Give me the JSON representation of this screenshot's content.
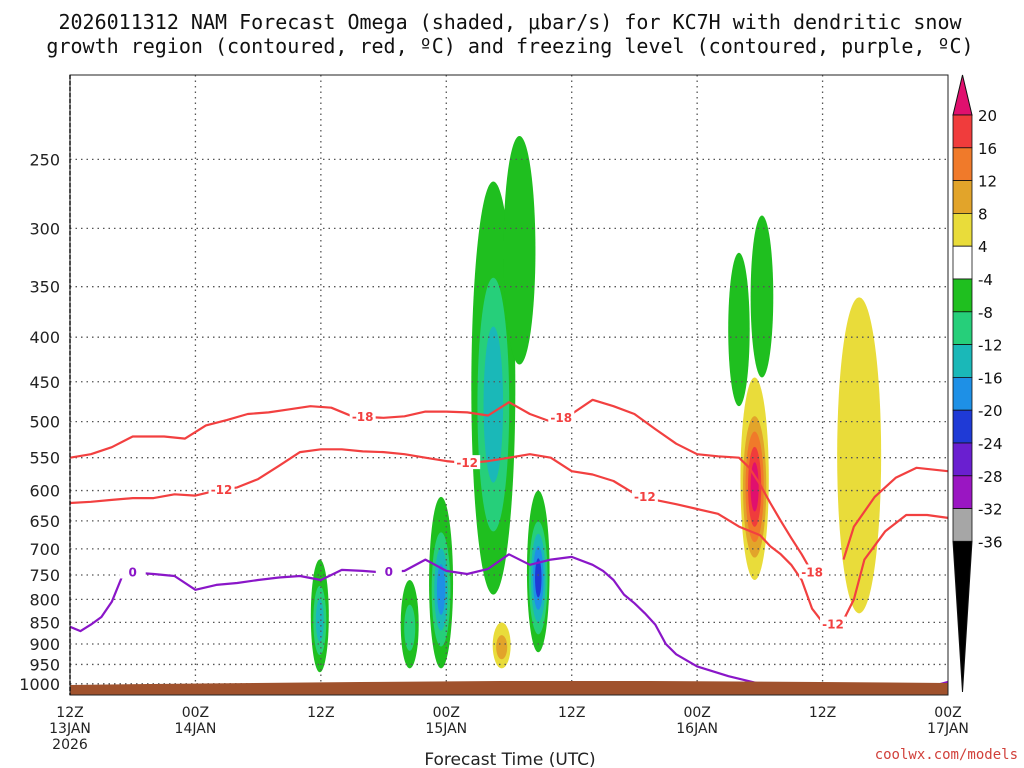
{
  "chart_data": {
    "type": "heatmap",
    "title_lines": [
      "2026011312 NAM Forecast Omega (shaded, μbar/s) for KC7H with dendritic snow",
      "growth region (contoured, red, ºC) and freezing level (contoured, purple, ºC)"
    ],
    "xlabel": "Forecast Time (UTC)",
    "ylabel": "",
    "x_unit": "forecast hour",
    "xlim": [
      0,
      84
    ],
    "ylim": [
      1030,
      200
    ],
    "y_ticks": [
      250,
      300,
      350,
      400,
      450,
      500,
      550,
      600,
      650,
      700,
      750,
      800,
      850,
      900,
      950,
      1000
    ],
    "x_ticks": [
      {
        "hour": 0,
        "line1": "12Z",
        "line2": "13JAN",
        "line3": "2026"
      },
      {
        "hour": 12,
        "line1": "00Z",
        "line2": "14JAN",
        "line3": ""
      },
      {
        "hour": 24,
        "line1": "12Z",
        "line2": "",
        "line3": ""
      },
      {
        "hour": 36,
        "line1": "00Z",
        "line2": "15JAN",
        "line3": ""
      },
      {
        "hour": 48,
        "line1": "12Z",
        "line2": "",
        "line3": ""
      },
      {
        "hour": 60,
        "line1": "00Z",
        "line2": "16JAN",
        "line3": ""
      },
      {
        "hour": 72,
        "line1": "12Z",
        "line2": "",
        "line3": ""
      },
      {
        "hour": 84,
        "line1": "00Z",
        "line2": "17JAN",
        "line3": ""
      }
    ],
    "colorbar": {
      "ticks": [
        "20",
        "16",
        "12",
        "8",
        "4",
        "-4",
        "-8",
        "-12",
        "-16",
        "-20",
        "-24",
        "-28",
        "-32",
        "-36"
      ],
      "colors": [
        "#e0106e",
        "#f03c3c",
        "#f07a2a",
        "#e2a42a",
        "#e9dc3a",
        "#ffffff",
        "#1fbf1f",
        "#26cf7a",
        "#1ab8b8",
        "#1e90e6",
        "#1f3ad6",
        "#6a1fd0",
        "#9a16c2",
        "#a6a6a6",
        "#000000"
      ]
    },
    "omega_features": [
      {
        "name": "upward cell 13Z14JAN",
        "hour": 23.9,
        "p_top": 720,
        "p_bottom": 970,
        "color": "#1fbf1f",
        "min_value": -16
      },
      {
        "name": "upward cell 21Z14JAN",
        "hour": 32.5,
        "p_top": 760,
        "p_bottom": 960,
        "color": "#1fbf1f",
        "min_value": -12
      },
      {
        "name": "upward cell 23Z14JAN",
        "hour": 35.5,
        "p_top": 610,
        "p_bottom": 960,
        "color": "#1fbf1f",
        "min_value": -20
      },
      {
        "name": "upward column 03Z15JAN",
        "hour": 40.5,
        "p_top": 265,
        "p_bottom": 790,
        "color": "#1fbf1f",
        "min_value": -16
      },
      {
        "name": "upward column 05Z15JAN",
        "hour": 43.0,
        "p_top": 235,
        "p_bottom": 430,
        "color": "#1fbf1f",
        "min_value": -8
      },
      {
        "name": "upward cell 07Z15JAN",
        "hour": 44.8,
        "p_top": 600,
        "p_bottom": 920,
        "color": "#1fbf1f",
        "min_value": -24
      },
      {
        "name": "upward column 04Z16JAN",
        "hour": 64.0,
        "p_top": 320,
        "p_bottom": 480,
        "color": "#1fbf1f",
        "min_value": -8
      },
      {
        "name": "upward column 06Z16JAN",
        "hour": 66.2,
        "p_top": 290,
        "p_bottom": 445,
        "color": "#1fbf1f",
        "min_value": -8
      },
      {
        "name": "sinking cell 04Z15JAN",
        "hour": 41.3,
        "p_top": 850,
        "p_bottom": 960,
        "color": "#e9dc3a",
        "max_value": 8
      },
      {
        "name": "sinking column 05Z16JAN",
        "hour": 65.5,
        "p_top": 445,
        "p_bottom": 760,
        "color": "#e9dc3a",
        "max_value": 20
      },
      {
        "name": "sinking column 15Z16JAN",
        "hour": 75.5,
        "p_top": 360,
        "p_bottom": 830,
        "color": "#e9dc3a",
        "max_value": 4
      }
    ],
    "series": [
      {
        "name": "-18",
        "color": "#f24040",
        "x": [
          0,
          2,
          4,
          6,
          9,
          11,
          13,
          15,
          17,
          19,
          21,
          23,
          25,
          27,
          30,
          32,
          34,
          36,
          38,
          40,
          42,
          44,
          46,
          48,
          50,
          52,
          54,
          56,
          58,
          60,
          62,
          64,
          65,
          66,
          67,
          68,
          69,
          70,
          71
        ],
        "y": [
          550,
          545,
          535,
          520,
          520,
          523,
          505,
          498,
          490,
          488,
          484,
          480,
          482,
          493,
          495,
          493,
          487,
          487,
          488,
          492,
          475,
          490,
          500,
          490,
          472,
          480,
          490,
          510,
          530,
          545,
          548,
          550,
          565,
          590,
          620,
          650,
          680,
          710,
          745
        ],
        "labels": [
          {
            "text": "-18",
            "hour": 28.0
          },
          {
            "text": "-18",
            "hour": 47.0
          },
          {
            "text": "-18",
            "hour": 71.0
          }
        ]
      },
      {
        "name": "-12",
        "color": "#f24040",
        "x": [
          0,
          2,
          4,
          6,
          8,
          10,
          12,
          14,
          16,
          18,
          20,
          22,
          24,
          26,
          28,
          30,
          32,
          34,
          36,
          38,
          40,
          42,
          44,
          46,
          48,
          50,
          52,
          54,
          56,
          58,
          60,
          62,
          64,
          66,
          67,
          68,
          69,
          70,
          71,
          72,
          73,
          74
        ],
        "y": [
          620,
          618,
          615,
          612,
          612,
          606,
          608,
          600,
          595,
          582,
          562,
          542,
          538,
          538,
          541,
          542,
          545,
          550,
          555,
          558,
          555,
          550,
          545,
          550,
          570,
          575,
          585,
          605,
          615,
          622,
          630,
          638,
          660,
          675,
          695,
          710,
          730,
          760,
          820,
          850,
          855,
          845
        ],
        "labels": [
          {
            "text": "-12",
            "hour": 14.5
          },
          {
            "text": "-12",
            "hour": 38.0
          },
          {
            "text": "-12",
            "hour": 55.0
          },
          {
            "text": "-12",
            "hour": 73.0
          }
        ]
      },
      {
        "name": "-18 (east branch)",
        "color": "#f24040",
        "x": [
          74,
          75,
          77,
          79,
          81,
          84
        ],
        "y": [
          720,
          660,
          610,
          580,
          565,
          570
        ],
        "labels": []
      },
      {
        "name": "-12 (east branch)",
        "color": "#f24040",
        "x": [
          74,
          75,
          76,
          78,
          80,
          82,
          84
        ],
        "y": [
          845,
          800,
          720,
          668,
          640,
          640,
          645
        ],
        "labels": []
      },
      {
        "name": "0",
        "color": "#8a16c8",
        "x": [
          0,
          1,
          2,
          3,
          4,
          5,
          6,
          8,
          10,
          12,
          14,
          16,
          18,
          20,
          22,
          24,
          26,
          28,
          30,
          32,
          34,
          36,
          38,
          40,
          42,
          44,
          46,
          48,
          50,
          51,
          52,
          53,
          54,
          55,
          56,
          57,
          58,
          60,
          63,
          66,
          70,
          74,
          78,
          82,
          84
        ],
        "y": [
          860,
          870,
          855,
          838,
          805,
          752,
          745,
          748,
          752,
          780,
          770,
          766,
          760,
          755,
          752,
          760,
          740,
          742,
          745,
          742,
          720,
          742,
          748,
          738,
          710,
          730,
          720,
          715,
          730,
          742,
          760,
          790,
          808,
          830,
          855,
          900,
          925,
          955,
          980,
          1000,
          1010,
          1018,
          1020,
          1010,
          995
        ],
        "labels": [
          {
            "text": "0",
            "hour": 6.0
          },
          {
            "text": "0",
            "hour": 30.5
          }
        ]
      }
    ]
  },
  "credit": "coolwx.com/models",
  "colors": {
    "ground": "#a0522d",
    "grid": "#555555"
  }
}
